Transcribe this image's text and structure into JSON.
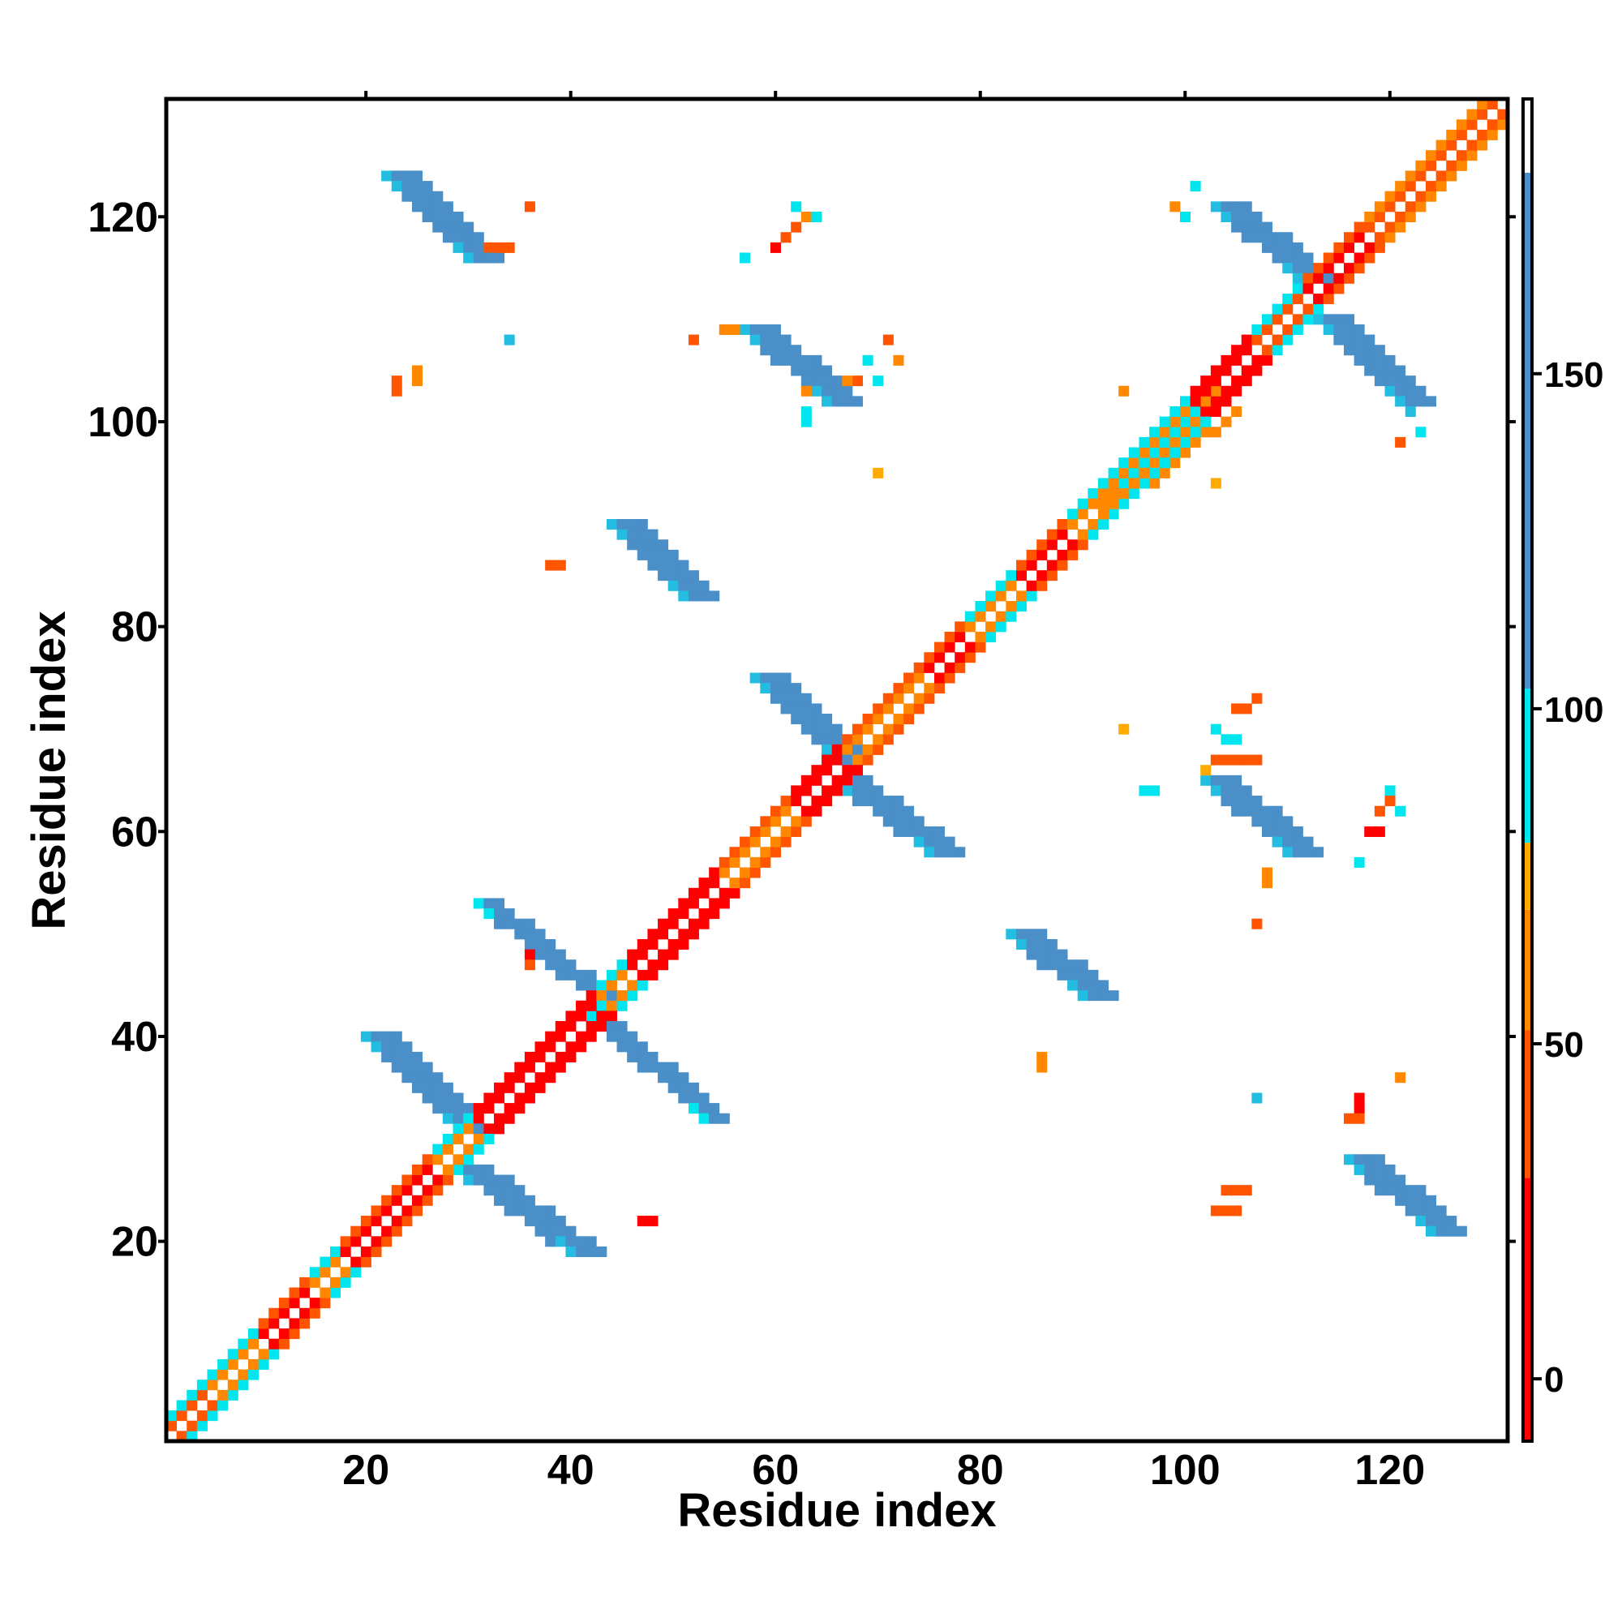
{
  "chart_data": {
    "type": "heatmap",
    "title": "",
    "xlabel": "Residue index",
    "ylabel": "Residue index",
    "xlim": [
      0.5,
      131.5
    ],
    "ylim": [
      0.5,
      131.5
    ],
    "x_ticks": [
      20,
      40,
      60,
      80,
      100,
      120
    ],
    "y_ticks": [
      20,
      40,
      60,
      80,
      100,
      120
    ],
    "grid": false,
    "colorbar": {
      "range": [
        -9.3,
        191
      ],
      "ticks": [
        0,
        50,
        100,
        150
      ],
      "bands": [
        {
          "from": -9.3,
          "to": 30,
          "color": "#ff0000"
        },
        {
          "from": 30,
          "to": 52,
          "color": "#ff5500"
        },
        {
          "from": 52,
          "to": 70,
          "color": "#ff8800"
        },
        {
          "from": 70,
          "to": 80,
          "color": "#ffaa00"
        },
        {
          "from": 80,
          "to": 103,
          "color": "#00e5ee"
        },
        {
          "from": 103,
          "to": 180,
          "color": "#4a8fc8"
        },
        {
          "from": 180,
          "to": 191,
          "color": "#ffffff"
        }
      ]
    },
    "palette": {
      "R": "#ff0000",
      "O": "#ff5500",
      "A": "#ff8800",
      "Y": "#ffaa00",
      "C": "#00e5ee",
      "L": "#22bde0",
      "B": "#4a8fc8"
    },
    "diagonal": {
      "from": 1,
      "to": 131,
      "offsets": [
        1,
        2
      ],
      "segments": [
        {
          "from": 1,
          "to": 5,
          "codes": [
            "O",
            "C"
          ]
        },
        {
          "from": 5,
          "to": 10,
          "codes": [
            "A",
            "C"
          ]
        },
        {
          "from": 10,
          "to": 15,
          "codes": [
            "R",
            "O"
          ]
        },
        {
          "from": 15,
          "to": 18,
          "codes": [
            "A",
            "C"
          ]
        },
        {
          "from": 18,
          "to": 27,
          "codes": [
            "R",
            "O"
          ]
        },
        {
          "from": 27,
          "to": 31,
          "codes": [
            "A",
            "C"
          ]
        },
        {
          "from": 31,
          "to": 43,
          "codes": [
            "R",
            "R"
          ]
        },
        {
          "from": 43,
          "to": 46,
          "codes": [
            "A",
            "C"
          ]
        },
        {
          "from": 46,
          "to": 55,
          "codes": [
            "R",
            "R"
          ]
        },
        {
          "from": 55,
          "to": 62,
          "codes": [
            "A",
            "O"
          ]
        },
        {
          "from": 62,
          "to": 67,
          "codes": [
            "R",
            "R"
          ]
        },
        {
          "from": 67,
          "to": 75,
          "codes": [
            "A",
            "O"
          ]
        },
        {
          "from": 75,
          "to": 79,
          "codes": [
            "R",
            "O"
          ]
        },
        {
          "from": 79,
          "to": 84,
          "codes": [
            "A",
            "C"
          ]
        },
        {
          "from": 84,
          "to": 89,
          "codes": [
            "R",
            "O"
          ]
        },
        {
          "from": 89,
          "to": 101,
          "codes": [
            "A",
            "C"
          ]
        },
        {
          "from": 101,
          "to": 107,
          "codes": [
            "R",
            "R"
          ]
        },
        {
          "from": 107,
          "to": 112,
          "codes": [
            "O",
            "C"
          ]
        },
        {
          "from": 112,
          "to": 118,
          "codes": [
            "R",
            "O"
          ]
        },
        {
          "from": 118,
          "to": 131,
          "codes": [
            "O",
            "A"
          ]
        }
      ]
    },
    "strands": [
      {
        "x": [
          20,
          29
        ],
        "y": [
          40,
          31
        ],
        "width": 4,
        "code": "B",
        "edge": "L"
      },
      {
        "x": [
          29,
          40
        ],
        "y": [
          27,
          19
        ],
        "width": 4,
        "code": "B",
        "edge": "L"
      },
      {
        "x": [
          31,
          43
        ],
        "y": [
          53,
          43
        ],
        "width": 3,
        "code": "B",
        "edge": "C"
      },
      {
        "x": [
          42,
          53
        ],
        "y": [
          42,
          32
        ],
        "width": 3,
        "code": "B",
        "edge": "C"
      },
      {
        "x": [
          22,
          30
        ],
        "y": [
          124,
          116
        ],
        "width": 4,
        "code": "B",
        "edge": "L"
      },
      {
        "x": [
          44,
          51
        ],
        "y": [
          90,
          83
        ],
        "width": 4,
        "code": "B",
        "edge": "L"
      },
      {
        "x": [
          57,
          65
        ],
        "y": [
          109,
          102
        ],
        "width": 4,
        "code": "B",
        "edge": "L"
      },
      {
        "x": [
          58,
          66
        ],
        "y": [
          75,
          67
        ],
        "width": 4,
        "code": "B",
        "edge": "L"
      },
      {
        "x": [
          66,
          75
        ],
        "y": [
          65,
          58
        ],
        "width": 4,
        "code": "B",
        "edge": "L"
      },
      {
        "x": [
          83,
          90
        ],
        "y": [
          50,
          44
        ],
        "width": 4,
        "code": "B",
        "edge": "L"
      },
      {
        "x": [
          102,
          110
        ],
        "y": [
          65,
          58
        ],
        "width": 4,
        "code": "B",
        "edge": "L"
      },
      {
        "x": [
          103,
          111
        ],
        "y": [
          121,
          114
        ],
        "width": 4,
        "code": "B",
        "edge": "L"
      },
      {
        "x": [
          113,
          121
        ],
        "y": [
          110,
          102
        ],
        "width": 4,
        "code": "B",
        "edge": "L"
      },
      {
        "x": [
          116,
          124
        ],
        "y": [
          28,
          21
        ],
        "width": 4,
        "code": "B",
        "edge": "L"
      },
      {
        "x": [
          91,
          103
        ],
        "y": [
          93,
          103
        ],
        "width": 3,
        "code": "C",
        "edge": "A"
      }
    ],
    "cells": [
      [
        36,
        121,
        "O"
      ],
      [
        32,
        117,
        "O"
      ],
      [
        33,
        117,
        "O"
      ],
      [
        34,
        117,
        "O"
      ],
      [
        23,
        104,
        "O"
      ],
      [
        23,
        103,
        "O"
      ],
      [
        25,
        105,
        "A"
      ],
      [
        25,
        104,
        "A"
      ],
      [
        34,
        108,
        "L"
      ],
      [
        62,
        121,
        "C"
      ],
      [
        63,
        120,
        "A"
      ],
      [
        64,
        120,
        "C"
      ],
      [
        62,
        119,
        "O"
      ],
      [
        61,
        118,
        "O"
      ],
      [
        60,
        117,
        "R"
      ],
      [
        57,
        116,
        "C"
      ],
      [
        52,
        108,
        "O"
      ],
      [
        55,
        109,
        "A"
      ],
      [
        56,
        109,
        "A"
      ],
      [
        71,
        108,
        "O"
      ],
      [
        72,
        106,
        "A"
      ],
      [
        69,
        106,
        "C"
      ],
      [
        70,
        104,
        "C"
      ],
      [
        68,
        104,
        "O"
      ],
      [
        67,
        104,
        "A"
      ],
      [
        63,
        103,
        "A"
      ],
      [
        63,
        101,
        "C"
      ],
      [
        63,
        100,
        "C"
      ],
      [
        70,
        95,
        "Y"
      ],
      [
        38,
        86,
        "O"
      ],
      [
        39,
        86,
        "O"
      ],
      [
        36,
        48,
        "R"
      ],
      [
        36,
        47,
        "O"
      ],
      [
        47,
        22,
        "R"
      ],
      [
        48,
        22,
        "R"
      ],
      [
        86,
        38,
        "A"
      ],
      [
        86,
        37,
        "A"
      ],
      [
        104,
        25,
        "O"
      ],
      [
        105,
        25,
        "O"
      ],
      [
        106,
        25,
        "O"
      ],
      [
        103,
        23,
        "O"
      ],
      [
        104,
        23,
        "O"
      ],
      [
        105,
        23,
        "O"
      ],
      [
        107,
        34,
        "L"
      ],
      [
        121,
        36,
        "A"
      ],
      [
        117,
        34,
        "R"
      ],
      [
        117,
        33,
        "R"
      ],
      [
        117,
        32,
        "O"
      ],
      [
        116,
        32,
        "O"
      ],
      [
        101,
        123,
        "C"
      ],
      [
        99,
        121,
        "A"
      ],
      [
        100,
        120,
        "C"
      ],
      [
        121,
        98,
        "O"
      ],
      [
        123,
        99,
        "C"
      ],
      [
        122,
        101,
        "L"
      ],
      [
        103,
        94,
        "Y"
      ],
      [
        94,
        103,
        "A"
      ],
      [
        94,
        70,
        "Y"
      ],
      [
        103,
        70,
        "C"
      ],
      [
        104,
        69,
        "C"
      ],
      [
        105,
        69,
        "C"
      ],
      [
        107,
        73,
        "O"
      ],
      [
        106,
        72,
        "O"
      ],
      [
        105,
        72,
        "O"
      ],
      [
        103,
        67,
        "O"
      ],
      [
        104,
        67,
        "O"
      ],
      [
        105,
        67,
        "O"
      ],
      [
        106,
        67,
        "O"
      ],
      [
        107,
        67,
        "O"
      ],
      [
        102,
        66,
        "Y"
      ],
      [
        96,
        64,
        "C"
      ],
      [
        97,
        64,
        "C"
      ],
      [
        108,
        56,
        "A"
      ],
      [
        108,
        55,
        "A"
      ],
      [
        107,
        51,
        "O"
      ],
      [
        117,
        57,
        "C"
      ],
      [
        120,
        64,
        "C"
      ],
      [
        120,
        63,
        "O"
      ],
      [
        121,
        62,
        "C"
      ],
      [
        119,
        62,
        "O"
      ],
      [
        118,
        60,
        "R"
      ],
      [
        119,
        60,
        "R"
      ]
    ]
  }
}
